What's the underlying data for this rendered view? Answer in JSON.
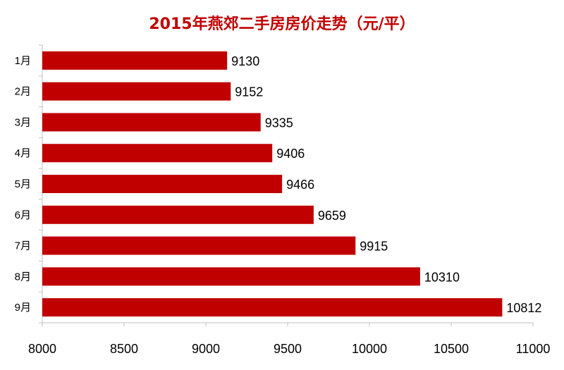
{
  "chart_data": {
    "type": "bar",
    "orientation": "horizontal",
    "title": "2015年燕郊二手房房价走势（元/平）",
    "xlabel": "",
    "ylabel": "",
    "categories": [
      "1月",
      "2月",
      "3月",
      "4月",
      "5月",
      "6月",
      "7月",
      "8月",
      "9月"
    ],
    "values": [
      9130,
      9152,
      9335,
      9406,
      9466,
      9659,
      9915,
      10310,
      10812
    ],
    "xlim": [
      8000,
      11000
    ],
    "xticks": [
      "8000",
      "8500",
      "9000",
      "9500",
      "10000",
      "10500",
      "11000"
    ],
    "grid": false,
    "bar_color": "#c00000",
    "title_color": "#c00000"
  }
}
